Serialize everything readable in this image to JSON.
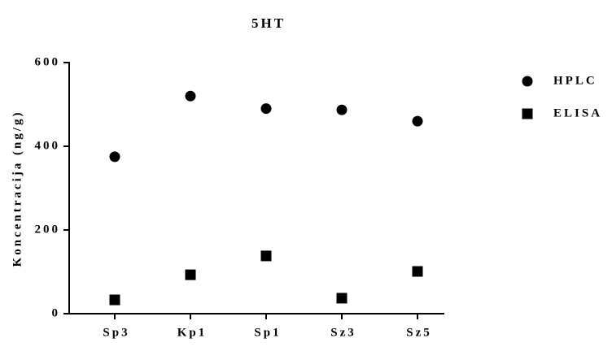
{
  "chart_data": {
    "type": "scatter",
    "title": "5HT",
    "y_label": "Koncentracija (ng/g)",
    "categories": [
      "Sp3",
      "Kp1",
      "Sp1",
      "Sz3",
      "Sz5"
    ],
    "series": [
      {
        "name": "HPLC",
        "color": "#000000",
        "marker": "circle",
        "values": [
          375,
          520,
          490,
          487,
          460
        ]
      },
      {
        "name": "ELISA",
        "color": "#000000",
        "marker": "square",
        "values": [
          33,
          93,
          138,
          37,
          101
        ]
      }
    ],
    "ylim": [
      0,
      600
    ],
    "yticks": [
      0,
      200,
      400,
      600
    ],
    "grid": false,
    "legend": "right"
  }
}
